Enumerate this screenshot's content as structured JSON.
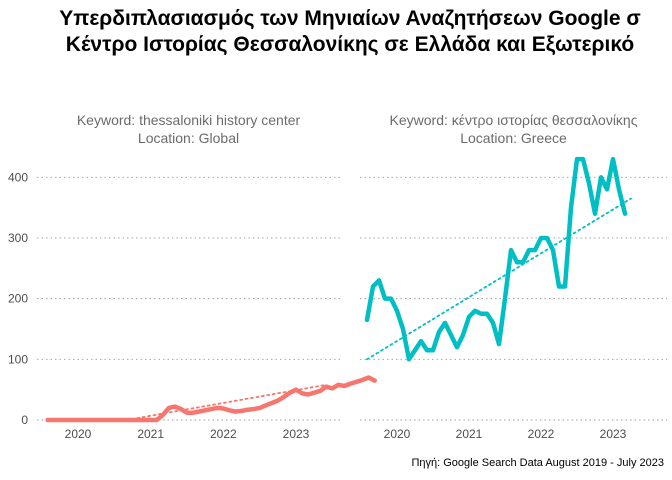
{
  "title_line1": "Υπερδιπλασιασμός των Μηνιαίων Αναζητήσεων Google σ",
  "title_line2": "Κέντρο Ιστορίας Θεσσαλονίκης σε Ελλάδα και Εξωτερικό",
  "caption": "Πηγή: Google Search Data August 2019 - July 2023",
  "colors": {
    "global": "#f8766d",
    "greece": "#00bfc4",
    "grid": "#9a9a9a"
  },
  "chart_data": {
    "type": "line",
    "ylim": [
      0,
      440
    ],
    "yticks": [
      0,
      100,
      200,
      300,
      400
    ],
    "xticks": [
      2020,
      2021,
      2022,
      2023
    ],
    "panels": [
      {
        "keyword_label": "Keyword: thessaloniki history center",
        "location_label": "Location: Global",
        "color": "#f8766d",
        "x_start": "2019-08",
        "values": [
          0,
          0,
          0,
          0,
          0,
          0,
          0,
          0,
          0,
          0,
          0,
          0,
          0,
          0,
          0,
          0,
          0,
          0,
          0,
          8,
          20,
          22,
          18,
          12,
          12,
          14,
          16,
          18,
          20,
          19,
          16,
          14,
          15,
          17,
          18,
          20,
          24,
          28,
          32,
          38,
          45,
          50,
          44,
          42,
          45,
          48,
          55,
          52,
          58,
          56,
          60,
          63,
          66,
          70,
          65
        ],
        "trend": [
          {
            "x": "2020-09",
            "y": 0
          },
          {
            "x": "2023-06",
            "y": 58
          }
        ]
      },
      {
        "keyword_label": "Keyword: κέντρο ιστορίας θεσσαλονίκης",
        "location_label": "Location: Greece",
        "color": "#00bfc4",
        "x_start": "2019-08",
        "values": [
          165,
          220,
          230,
          200,
          200,
          180,
          150,
          100,
          115,
          130,
          115,
          115,
          145,
          160,
          140,
          120,
          140,
          170,
          180,
          175,
          175,
          160,
          125,
          200,
          280,
          260,
          260,
          280,
          280,
          300,
          300,
          280,
          220,
          220,
          350,
          430,
          430,
          390,
          340,
          400,
          380,
          430,
          380,
          340
        ],
        "trend": [
          {
            "x": "2019-08",
            "y": 100
          },
          {
            "x": "2023-04",
            "y": 365
          }
        ]
      }
    ]
  }
}
